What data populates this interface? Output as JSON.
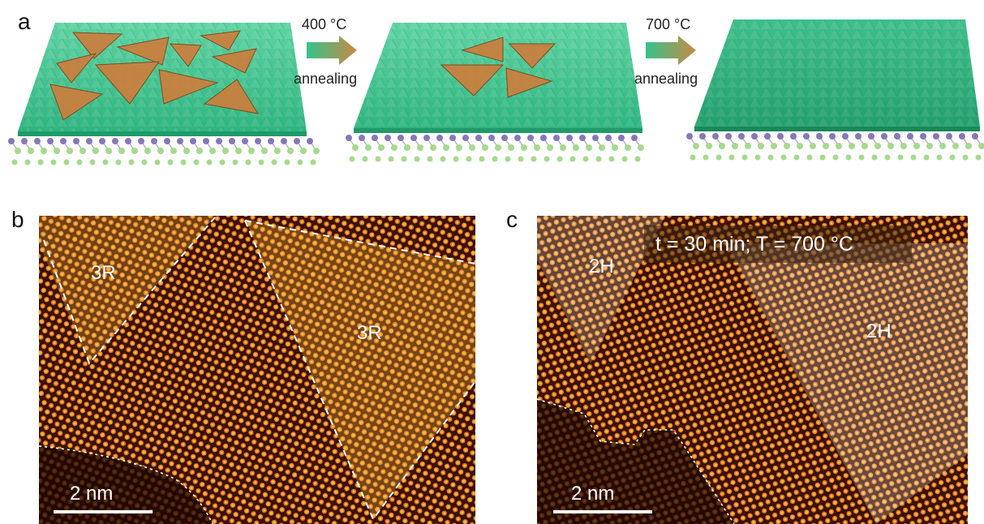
{
  "panel_a": {
    "label": "a",
    "steps": [
      {
        "temperature": "400 °C",
        "process": "annealing"
      },
      {
        "temperature": "700 °C",
        "process": "annealing"
      }
    ]
  },
  "panel_b": {
    "label": "b",
    "phase_labels": [
      "3R",
      "3R"
    ],
    "scale_bar": "2 nm"
  },
  "panel_c": {
    "label": "c",
    "condition": "t = 30 min; T = 700 °C",
    "phase_labels": [
      "2H",
      "2H"
    ],
    "scale_bar": "2 nm"
  },
  "colors": {
    "sheet_green": "#3ec48e",
    "flake_orange": "#c8803f",
    "atom_purple": "#8877b8",
    "atom_green": "#a6d98d",
    "stem_dark": "#2a0a00",
    "stem_orange": "#ff9a30"
  }
}
